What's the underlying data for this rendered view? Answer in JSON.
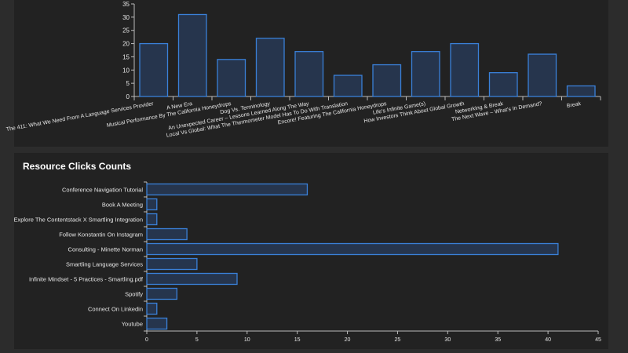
{
  "colors": {
    "bar_fill": "#26354d",
    "bar_stroke": "#3a80d8",
    "axis": "#bbbbbb"
  },
  "chart_data": [
    {
      "type": "bar",
      "title": "",
      "categories": [
        "The 411: What We Need From A Language Services Provider",
        "A New Era",
        "Musical Performance By The California Honeydrops",
        "Dog Vs. Terminology",
        "An Unexpected Career – Lessons Learned Along The Way",
        "Local Vs Global: What The Thermometer Model Has To Do With Translation",
        "Encore! Featuring The California Honeydrops",
        "Life's Infinite Game(s)",
        "How Investors Think About Global Growth",
        "Networking & Break",
        "The Next Wave – What's In Demand?",
        "Break"
      ],
      "values": [
        20,
        31,
        14,
        22,
        17,
        8,
        12,
        17,
        20,
        9,
        16,
        4
      ],
      "ylim": [
        0,
        35
      ],
      "yticks": [
        0,
        5,
        10,
        15,
        20,
        25,
        30,
        35
      ],
      "grid": false
    },
    {
      "type": "bar",
      "orientation": "horizontal",
      "title": "Resource Clicks Counts",
      "categories": [
        "Conference Navigation Tutorial",
        "Book A Meeting",
        "Explore The Contentstack X Smartling Integration",
        "Follow Konstantin On Instagram",
        "Consulting - Minette Norman",
        "Smartling Language Services",
        "Infinite Mindset - 5 Practices - Smartling.pdf",
        "Spotify",
        "Connect On Linkedin",
        "Youtube"
      ],
      "values": [
        16,
        1,
        1,
        4,
        41,
        5,
        9,
        3,
        1,
        2
      ],
      "xlim": [
        0,
        45
      ],
      "xticks": [
        0,
        5,
        10,
        15,
        20,
        25,
        30,
        35,
        40,
        45
      ],
      "grid": false
    }
  ]
}
